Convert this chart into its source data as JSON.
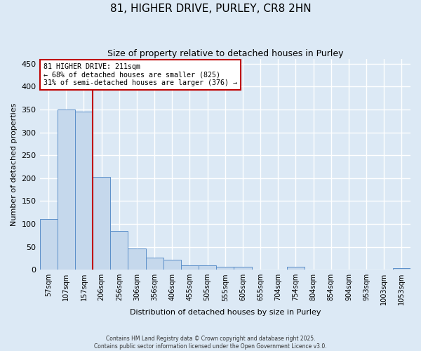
{
  "title_line1": "81, HIGHER DRIVE, PURLEY, CR8 2HN",
  "title_line2": "Size of property relative to detached houses in Purley",
  "xlabel": "Distribution of detached houses by size in Purley",
  "ylabel": "Number of detached properties",
  "bar_labels": [
    "57sqm",
    "107sqm",
    "157sqm",
    "206sqm",
    "256sqm",
    "306sqm",
    "356sqm",
    "406sqm",
    "455sqm",
    "505sqm",
    "555sqm",
    "605sqm",
    "655sqm",
    "704sqm",
    "754sqm",
    "804sqm",
    "854sqm",
    "904sqm",
    "953sqm",
    "1003sqm",
    "1053sqm"
  ],
  "bar_values": [
    110,
    350,
    345,
    202,
    85,
    47,
    26,
    22,
    9,
    10,
    6,
    6,
    1,
    1,
    6,
    1,
    1,
    1,
    1,
    1,
    4
  ],
  "bar_color": "#c5d8ec",
  "bar_edge_color": "#5b8fc9",
  "background_color": "#dce9f5",
  "grid_color": "#ffffff",
  "vline_color": "#c00000",
  "annotation_text": "81 HIGHER DRIVE: 211sqm\n← 68% of detached houses are smaller (825)\n31% of semi-detached houses are larger (376) →",
  "annotation_box_color": "#ffffff",
  "annotation_box_edge_color": "#c00000",
  "ylim": [
    0,
    460
  ],
  "yticks": [
    0,
    50,
    100,
    150,
    200,
    250,
    300,
    350,
    400,
    450
  ],
  "footer_line1": "Contains HM Land Registry data © Crown copyright and database right 2025.",
  "footer_line2": "Contains public sector information licensed under the Open Government Licence v3.0."
}
